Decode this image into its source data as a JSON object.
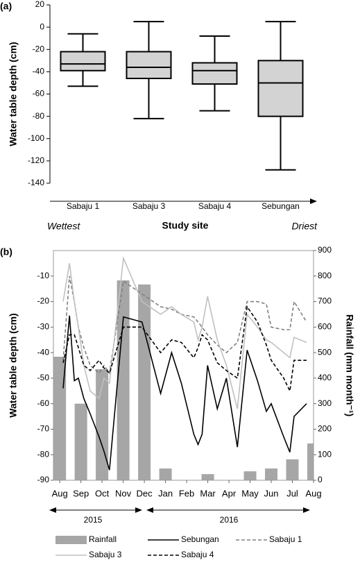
{
  "chart_data": [
    {
      "type": "box",
      "label": "(a)",
      "ylabel": "Water table depth (cm)",
      "xlabel": "Study site",
      "annotations": [
        "Wettest",
        "Driest"
      ],
      "categories": [
        "Sabaju 1",
        "Sabaju 3",
        "Sabaju 4",
        "Sebungan"
      ],
      "boxes": [
        {
          "whisker_low": -53,
          "q1": -39,
          "median": -33,
          "q3": -22,
          "whisker_high": -6
        },
        {
          "whisker_low": -82,
          "q1": -46,
          "median": -36,
          "q3": -22,
          "whisker_high": 5
        },
        {
          "whisker_low": -75,
          "q1": -51,
          "median": -39,
          "q3": -32,
          "whisker_high": -8
        },
        {
          "whisker_low": -128,
          "q1": -80,
          "median": -50,
          "q3": -30,
          "whisker_high": 5
        }
      ],
      "color": "#d3d3d3",
      "ylim": [
        -140,
        20
      ],
      "yticks": [
        -140,
        -120,
        -100,
        -80,
        -60,
        -40,
        -20,
        0,
        20
      ]
    },
    {
      "type": "line",
      "label": "(b)",
      "ylabel": "Water table depth (cm)",
      "y2label": "Rainfall (mm month⁻¹)",
      "xlim": [
        -0.3,
        12
      ],
      "xticks": [
        {
          "value": 0,
          "label": "Aug"
        },
        {
          "value": 1,
          "label": "Sep"
        },
        {
          "value": 2,
          "label": "Oct"
        },
        {
          "value": 3,
          "label": "Nov"
        },
        {
          "value": 4,
          "label": "Dec"
        },
        {
          "value": 5,
          "label": "Jan"
        },
        {
          "value": 6,
          "label": "Feb"
        },
        {
          "value": 7,
          "label": "Mar"
        },
        {
          "value": 8,
          "label": "Apr"
        },
        {
          "value": 9,
          "label": "May"
        },
        {
          "value": 10,
          "label": "Jun"
        },
        {
          "value": 11,
          "label": "Jul"
        },
        {
          "value": 12,
          "label": "Aug"
        }
      ],
      "years": [
        "2015",
        "2016"
      ],
      "ylim": [
        -90,
        0
      ],
      "yticks": [
        -90,
        -80,
        -70,
        -60,
        -50,
        -40,
        -30,
        -20,
        -10
      ],
      "y2lim": [
        0,
        900
      ],
      "y2ticks": [
        0,
        100,
        200,
        300,
        400,
        500,
        600,
        700,
        800,
        900
      ],
      "x": [
        0.16,
        0.46,
        0.69,
        0.88,
        1.14,
        1.44,
        1.86,
        2.09,
        2.35,
        3.01,
        3.89,
        4.77,
        5.29,
        5.75,
        6.34,
        6.54,
        6.73,
        6.99,
        7.45,
        7.88,
        8.4,
        8.86,
        9.35,
        9.77,
        10.0,
        10.59,
        10.88,
        11.08,
        11.67
      ],
      "series": [
        {
          "name": "Rainfall",
          "type": "bar",
          "axis": "y2",
          "color": "#a6a6a6",
          "x": [
            0,
            1,
            2,
            3,
            4,
            5,
            6,
            7,
            8,
            9,
            10,
            11,
            12
          ],
          "values": [
            484,
            300,
            435,
            783,
            767,
            46,
            0,
            24,
            0,
            35,
            46,
            82,
            144
          ]
        },
        {
          "name": "Sebungan",
          "color": "#000000",
          "linestyle": "solid",
          "values": [
            -54,
            -25.5,
            -51,
            -50,
            -58,
            -64,
            -73,
            -78.6,
            -86,
            -26,
            -28,
            -56,
            -40,
            -52,
            -72,
            -76,
            -72,
            -45,
            -62,
            -50,
            -77,
            -39,
            -51,
            -63,
            -60,
            -73,
            -79,
            -65,
            -60
          ]
        },
        {
          "name": "Sabaju 1",
          "color": "#808080",
          "linestyle": "dashed",
          "values": [
            -43,
            -10,
            -20,
            -30,
            -38,
            -45,
            -48,
            -45,
            -48,
            -12,
            -17,
            -22,
            -23,
            -25,
            -26,
            -28,
            -30,
            -33,
            -37,
            -40,
            -36,
            -20,
            -20,
            -21,
            -30,
            -31,
            -31,
            -20,
            -28
          ]
        },
        {
          "name": "Sabaju 3",
          "color": "#c0c0c0",
          "linestyle": "solid",
          "values": [
            -20,
            -5,
            -20,
            -30,
            -45,
            -55,
            -58,
            -50,
            -52,
            -3,
            -20,
            -25,
            -22,
            -25,
            -28,
            -35,
            -30,
            -18,
            -35,
            -45,
            -62,
            -25,
            -30,
            -35,
            -36,
            -40,
            -42,
            -34,
            -36
          ]
        },
        {
          "name": "Sabaju 4",
          "color": "#000000",
          "linestyle": "dashed",
          "values": [
            -44,
            -33,
            -33,
            -38,
            -45,
            -47,
            -43,
            -46,
            -48,
            -30,
            -30,
            -40,
            -35,
            -36,
            -42,
            -38,
            -33,
            -35,
            -44,
            -47,
            -50,
            -22,
            -28,
            -37,
            -43,
            -50,
            -55,
            -43,
            -43
          ]
        }
      ]
    }
  ]
}
